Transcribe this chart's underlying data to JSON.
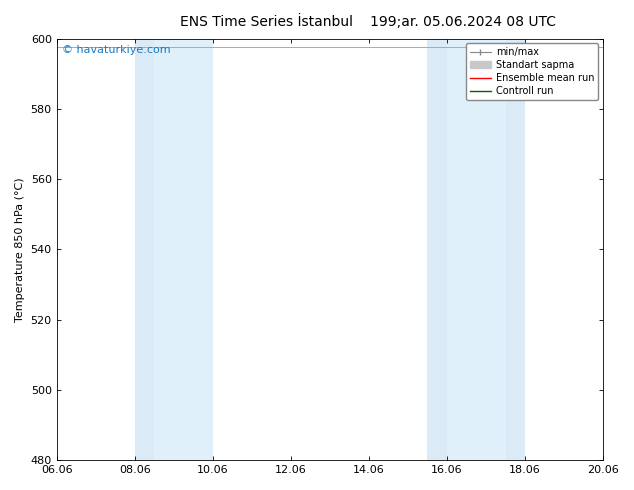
{
  "title_left": "ENS Time Series İstanbul",
  "title_right": "199;ar. 05.06.2024 08 UTC",
  "ylabel": "Temperature 850 hPa (°C)",
  "ylim": [
    480,
    600
  ],
  "yticks": [
    480,
    500,
    520,
    540,
    560,
    580,
    600
  ],
  "xtick_labels": [
    "06.06",
    "08.06",
    "10.06",
    "12.06",
    "14.06",
    "16.06",
    "18.06",
    "20.06"
  ],
  "xtick_positions": [
    0,
    2,
    4,
    6,
    8,
    10,
    12,
    14
  ],
  "xlim": [
    0,
    14
  ],
  "watermark": "© havaturkiye.com",
  "watermark_color": "#1a7abf",
  "bg_color": "#ffffff",
  "plot_bg_color": "#ffffff",
  "shaded_bands": [
    {
      "x_start": 2,
      "x_end": 2.5,
      "color": "#daeaf7"
    },
    {
      "x_start": 2.5,
      "x_end": 4,
      "color": "#dff0fb"
    },
    {
      "x_start": 9.5,
      "x_end": 10,
      "color": "#daeaf7"
    },
    {
      "x_start": 10,
      "x_end": 11.5,
      "color": "#dff0fb"
    },
    {
      "x_start": 11.5,
      "x_end": 12,
      "color": "#daeaf7"
    }
  ],
  "minmax_line_y": 597.5,
  "legend_labels": [
    "min/max",
    "Standart sapma",
    "Ensemble mean run",
    "Controll run"
  ],
  "legend_colors": [
    "#888888",
    "#c8c8c8",
    "#ff0000",
    "#006400"
  ],
  "title_fontsize": 10,
  "axis_label_fontsize": 8,
  "tick_fontsize": 8,
  "watermark_fontsize": 8
}
